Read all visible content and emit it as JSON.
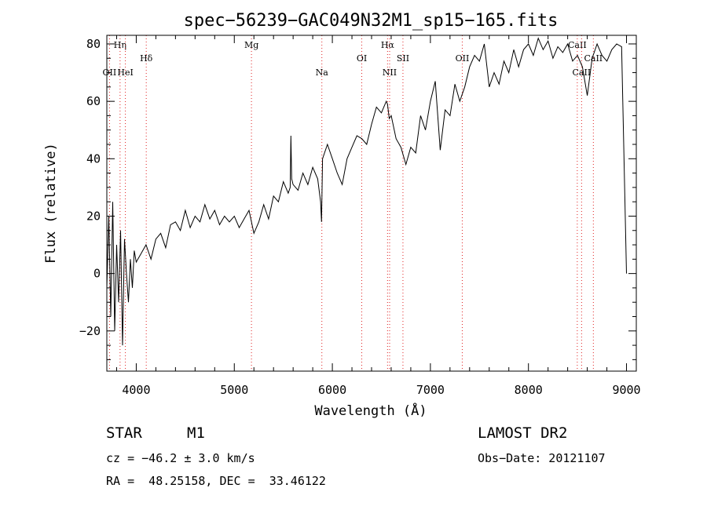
{
  "chart_data": {
    "type": "line",
    "title": "spec−56239−GAC049N32M1_sp15−165.fits",
    "xlabel": "Wavelength (Å)",
    "ylabel": "Flux (relative)",
    "xlim": [
      3700,
      9100
    ],
    "ylim": [
      -34,
      83
    ],
    "xticks": [
      4000,
      5000,
      6000,
      7000,
      8000,
      9000
    ],
    "xtick_labels": [
      "4000",
      "5000",
      "6000",
      "7000",
      "8000",
      "9000"
    ],
    "yticks": [
      -20,
      0,
      20,
      40,
      60,
      80
    ],
    "ytick_labels": [
      "−20",
      "0",
      "20",
      "40",
      "60",
      "80"
    ],
    "grid": false,
    "series": [
      {
        "x": [
          3700,
          3720,
          3740,
          3760,
          3780,
          3800,
          3820,
          3840,
          3860,
          3880,
          3900,
          3920,
          3940,
          3960,
          3980,
          4000,
          4050,
          4100,
          4150,
          4200,
          4250,
          4300,
          4350,
          4400,
          4450,
          4500,
          4550,
          4600,
          4650,
          4700,
          4750,
          4800,
          4850,
          4900,
          4950,
          5000,
          5050,
          5100,
          5150,
          5200,
          5250,
          5300,
          5350,
          5400,
          5450,
          5500,
          5550,
          5570,
          5577,
          5585,
          5600,
          5650,
          5700,
          5750,
          5800,
          5850,
          5880,
          5890,
          5900,
          5950,
          6000,
          6050,
          6100,
          6150,
          6200,
          6250,
          6300,
          6350,
          6400,
          6450,
          6500,
          6550,
          6563,
          6580,
          6600,
          6650,
          6700,
          6750,
          6800,
          6850,
          6900,
          6950,
          7000,
          7050,
          7100,
          7150,
          7200,
          7250,
          7300,
          7350,
          7400,
          7450,
          7500,
          7550,
          7600,
          7650,
          7700,
          7750,
          7800,
          7850,
          7900,
          7950,
          8000,
          8050,
          8100,
          8150,
          8200,
          8250,
          8300,
          8350,
          8400,
          8450,
          8500,
          8550,
          8600,
          8650,
          8700,
          8750,
          8800,
          8850,
          8900,
          8950,
          9000
        ],
        "y": [
          -5,
          20,
          -15,
          25,
          -20,
          10,
          -10,
          15,
          -25,
          12,
          0,
          -10,
          5,
          -5,
          8,
          4,
          7,
          10,
          5,
          12,
          14,
          9,
          17,
          18,
          15,
          22,
          16,
          20,
          18,
          24,
          19,
          22,
          17,
          20,
          18,
          20,
          16,
          19,
          22,
          14,
          18,
          24,
          19,
          27,
          25,
          32,
          28,
          30,
          48,
          33,
          31,
          29,
          35,
          31,
          37,
          33,
          25,
          18,
          40,
          45,
          40,
          35,
          31,
          40,
          44,
          48,
          47,
          45,
          52,
          58,
          56,
          60,
          59,
          54,
          55,
          47,
          44,
          38,
          44,
          42,
          55,
          50,
          60,
          67,
          43,
          57,
          55,
          66,
          60,
          65,
          72,
          76,
          74,
          80,
          65,
          70,
          66,
          74,
          70,
          78,
          72,
          78,
          80,
          76,
          82,
          78,
          81,
          75,
          79,
          77,
          80,
          74,
          76,
          72,
          62,
          75,
          80,
          76,
          74,
          78,
          80,
          79,
          0
        ]
      }
    ],
    "lines": [
      {
        "label": "Hη",
        "x": 3835,
        "row": 0
      },
      {
        "label": "OII",
        "x": 3727,
        "row": 2
      },
      {
        "label": "HeI",
        "x": 3889,
        "row": 2
      },
      {
        "label": "Hδ",
        "x": 4102,
        "row": 1
      },
      {
        "label": "Mg",
        "x": 5175,
        "row": 0
      },
      {
        "label": "Na",
        "x": 5893,
        "row": 2
      },
      {
        "label": "OI",
        "x": 6300,
        "row": 1
      },
      {
        "label": "Hα",
        "x": 6563,
        "row": 0
      },
      {
        "label": "NII",
        "x": 6584,
        "row": 2
      },
      {
        "label": "SII",
        "x": 6720,
        "row": 1
      },
      {
        "label": "OII",
        "x": 7325,
        "row": 1
      },
      {
        "label": "CaII",
        "x": 8498,
        "row": 0
      },
      {
        "label": "CaII",
        "x": 8542,
        "row": 2
      },
      {
        "label": "CaII",
        "x": 8662,
        "row": 1
      }
    ],
    "line_color": "#e02020"
  },
  "info": {
    "object_class": "STAR",
    "subclass": "M1",
    "survey": "LAMOST DR2",
    "cz": "cz = −46.2 ± 3.0 km/s",
    "obs_date": "Obs−Date: 20121107",
    "coords": "RA =  48.25158, DEC =  33.46122"
  }
}
